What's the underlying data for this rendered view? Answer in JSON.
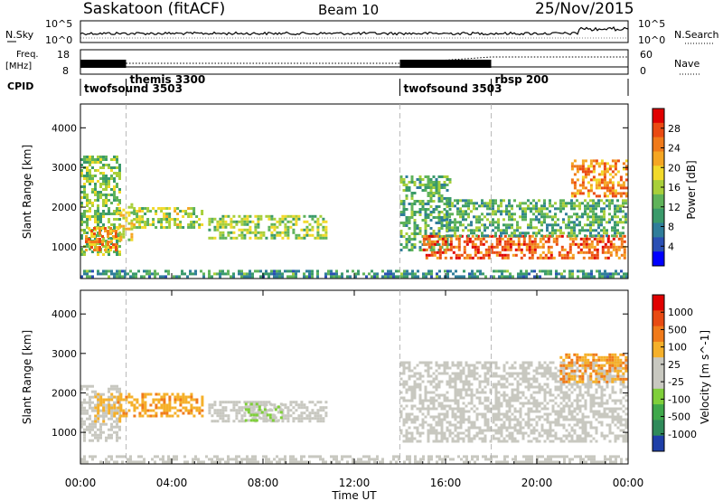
{
  "header": {
    "station": "Saskatoon (fitACF)",
    "beam": "Beam 10",
    "date": "25/Nov/2015"
  },
  "noise_panel": {
    "left_label": "N.Sky",
    "right_label": "N.Search",
    "left_ticks": [
      "10^5",
      "10^0"
    ],
    "right_ticks": [
      "10^5",
      "10^0"
    ]
  },
  "freq_panel": {
    "left_label_line1": "Freq.",
    "left_label_line2": "[MHz]",
    "left_ticks": [
      "18",
      "8"
    ],
    "right_label": "Nave",
    "right_ticks": [
      "60",
      "0"
    ]
  },
  "cpid_panel": {
    "label": "CPID",
    "segments": [
      {
        "name": "twofsound 3503",
        "start_hour": 0
      },
      {
        "name": "themis 3300",
        "start_hour": 2
      },
      {
        "name": "twofsound 3503",
        "start_hour": 14
      },
      {
        "name": "rbsp 200",
        "start_hour": 18
      }
    ]
  },
  "x_axis": {
    "label": "Time UT",
    "range_hours": [
      0,
      24
    ],
    "ticks": [
      "00:00",
      "04:00",
      "08:00",
      "12:00",
      "16:00",
      "20:00",
      "00:00"
    ],
    "tick_hours": [
      0,
      4,
      8,
      12,
      16,
      20,
      24
    ]
  },
  "chart_data": [
    {
      "type": "heatmap",
      "ylabel": "Slant Range [km]",
      "ylim": [
        200,
        4600
      ],
      "y_ticks": [
        1000,
        2000,
        3000,
        4000
      ],
      "colorbar": {
        "label": "Power [dB]",
        "ticks": [
          "28",
          "24",
          "20",
          "16",
          "12",
          "8",
          "4"
        ],
        "tick_values": [
          28,
          24,
          20,
          16,
          12,
          8,
          4
        ],
        "range": [
          0,
          32
        ],
        "colors": [
          "#0000ff",
          "#2a4fb4",
          "#2f7d9a",
          "#3a9a6a",
          "#5fb35a",
          "#a8cf3a",
          "#f2d92a",
          "#f5a623",
          "#f07a1a",
          "#ea4a12",
          "#e00000"
        ]
      },
      "regions": [
        {
          "t": [
            0.0,
            1.7
          ],
          "r": [
            800,
            3300
          ],
          "level": 14
        },
        {
          "t": [
            0.2,
            1.6
          ],
          "r": [
            900,
            1500
          ],
          "level": 24
        },
        {
          "t": [
            1.6,
            2.3
          ],
          "r": [
            1200,
            2100
          ],
          "level": 18
        },
        {
          "t": [
            2.3,
            5.3
          ],
          "r": [
            1500,
            2000
          ],
          "level": 16
        },
        {
          "t": [
            5.6,
            10.8
          ],
          "r": [
            1200,
            1800
          ],
          "level": 15
        },
        {
          "t": [
            14.0,
            16.2
          ],
          "r": [
            900,
            2800
          ],
          "level": 12
        },
        {
          "t": [
            15.0,
            23.9
          ],
          "r": [
            700,
            1300
          ],
          "level": 26
        },
        {
          "t": [
            16.0,
            23.9
          ],
          "r": [
            1300,
            2200
          ],
          "level": 12
        },
        {
          "t": [
            21.5,
            23.9
          ],
          "r": [
            2300,
            3200
          ],
          "level": 24
        },
        {
          "t": [
            0.0,
            24.0
          ],
          "r": [
            250,
            420
          ],
          "level": 10
        }
      ]
    },
    {
      "type": "heatmap",
      "ylabel": "Slant Range [km]",
      "ylim": [
        200,
        4600
      ],
      "y_ticks": [
        1000,
        2000,
        3000,
        4000
      ],
      "colorbar": {
        "label": "Velocity [m s^-1]",
        "ticks": [
          "1000",
          "500",
          "100",
          "25",
          "-25",
          "-100",
          "-500",
          "-1000"
        ],
        "tick_values": [
          1000,
          500,
          100,
          25,
          -25,
          -100,
          -500,
          -1000
        ],
        "range": [
          -1200,
          1200
        ],
        "colors": [
          "#1f3fa8",
          "#2f8a5a",
          "#3fa84a",
          "#7fcf3a",
          "#c8c8c0",
          "#c8c8c0",
          "#f5b02a",
          "#f07a1a",
          "#e84a12",
          "#e00000"
        ]
      },
      "regions": [
        {
          "t": [
            0.0,
            1.7
          ],
          "r": [
            800,
            2200
          ],
          "v": 0
        },
        {
          "t": [
            0.6,
            1.7
          ],
          "r": [
            1300,
            2000
          ],
          "v": 300
        },
        {
          "t": [
            1.6,
            5.3
          ],
          "r": [
            1400,
            2000
          ],
          "v": 400
        },
        {
          "t": [
            5.6,
            10.8
          ],
          "r": [
            1300,
            1800
          ],
          "v": 80
        },
        {
          "t": [
            7.2,
            8.8
          ],
          "r": [
            1300,
            1750
          ],
          "v": -250
        },
        {
          "t": [
            14.0,
            23.9
          ],
          "r": [
            800,
            2800
          ],
          "v": 0
        },
        {
          "t": [
            21.0,
            23.9
          ],
          "r": [
            2300,
            3000
          ],
          "v": 450
        },
        {
          "t": [
            0.0,
            24.0
          ],
          "r": [
            250,
            420
          ],
          "v": -60
        }
      ]
    }
  ]
}
